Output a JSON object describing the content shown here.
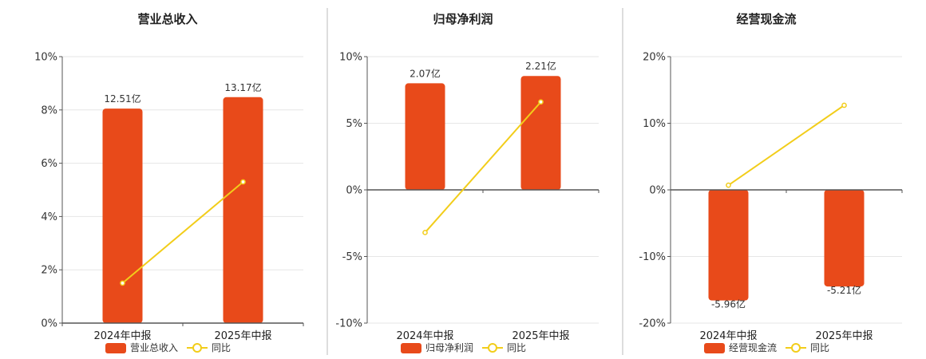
{
  "colors": {
    "bar": "#E84A1A",
    "line": "#F2CD1A",
    "axis": "#555555",
    "grid": "#E6E6E6",
    "separator": "#BBBBBB"
  },
  "chart_data": [
    {
      "type": "bar",
      "title": "营业总收入",
      "categories": [
        "2024年中报",
        "2025年中报"
      ],
      "ylim": [
        0,
        10
      ],
      "yticks": [
        0,
        2,
        4,
        6,
        8,
        10
      ],
      "tick_labels": [
        "0%",
        "2%",
        "4%",
        "6%",
        "8%",
        "10%"
      ],
      "series": [
        {
          "name": "营业总收入",
          "type": "bar",
          "values": [
            8.05,
            8.48
          ],
          "labels": [
            "12.51亿",
            "13.17亿"
          ]
        },
        {
          "name": "同比",
          "type": "line",
          "values": [
            1.5,
            5.3
          ]
        }
      ],
      "legend": "bottom"
    },
    {
      "type": "bar",
      "title": "归母净利润",
      "categories": [
        "2024年中报",
        "2025年中报"
      ],
      "ylim": [
        -10,
        10
      ],
      "yticks": [
        -10,
        -5,
        0,
        5,
        10
      ],
      "tick_labels": [
        "-10%",
        "-5%",
        "0%",
        "5%",
        "10%"
      ],
      "series": [
        {
          "name": "归母净利润",
          "type": "bar",
          "values": [
            8.0,
            8.55
          ],
          "labels": [
            "2.07亿",
            "2.21亿"
          ]
        },
        {
          "name": "同比",
          "type": "line",
          "values": [
            -3.2,
            6.6
          ]
        }
      ],
      "legend": "bottom"
    },
    {
      "type": "bar",
      "title": "经营现金流",
      "categories": [
        "2024年中报",
        "2025年中报"
      ],
      "ylim": [
        -20,
        20
      ],
      "yticks": [
        -20,
        -10,
        0,
        10,
        20
      ],
      "tick_labels": [
        "-20%",
        "-10%",
        "0%",
        "10%",
        "20%"
      ],
      "series": [
        {
          "name": "经营现金流",
          "type": "bar",
          "values": [
            -16.6,
            -14.5
          ],
          "labels": [
            "-5.96亿",
            "-5.21亿"
          ]
        },
        {
          "name": "同比",
          "type": "line",
          "values": [
            0.7,
            12.7
          ]
        }
      ],
      "legend": "bottom"
    }
  ]
}
